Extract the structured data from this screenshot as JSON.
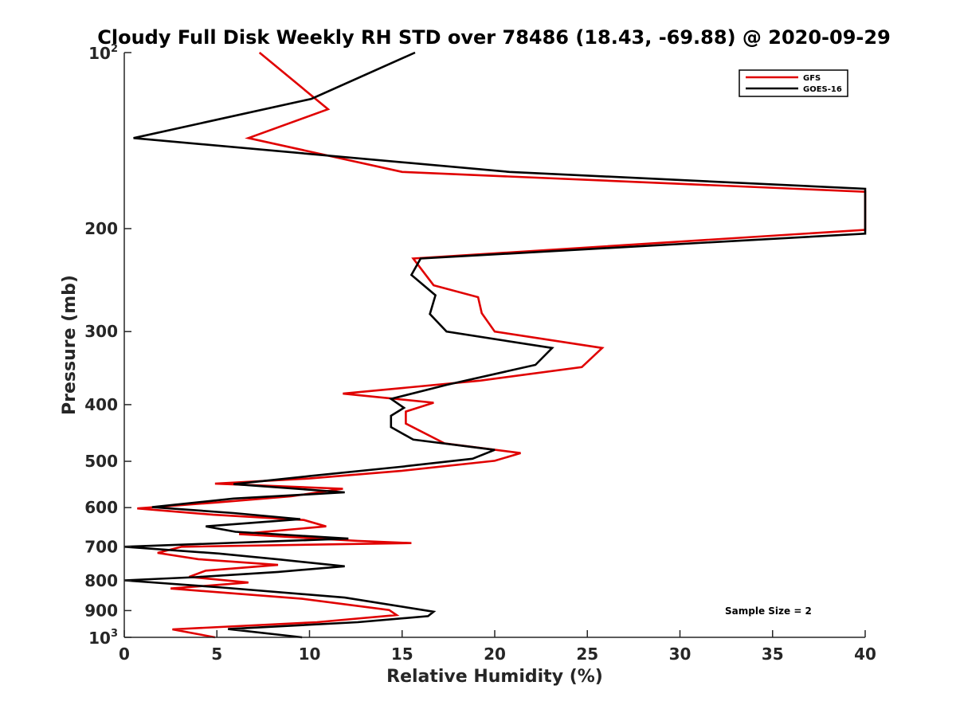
{
  "chart_data": {
    "type": "line",
    "title": "Cloudy Full Disk Weekly RH STD over 78486 (18.43, -69.88) @ 2020-09-29",
    "xlabel": "Relative Humidity (%)",
    "ylabel": "Pressure (mb)",
    "xlim": [
      0,
      40
    ],
    "ylim": [
      100,
      1000
    ],
    "y_scale": "log",
    "y_reversed": true,
    "xticks": [
      0,
      5,
      10,
      15,
      20,
      25,
      30,
      35,
      40
    ],
    "yticks": [
      {
        "value": 100,
        "label": "10",
        "exp": "2"
      },
      {
        "value": 200,
        "label": "200"
      },
      {
        "value": 300,
        "label": "300"
      },
      {
        "value": 400,
        "label": "400"
      },
      {
        "value": 500,
        "label": "500"
      },
      {
        "value": 600,
        "label": "600"
      },
      {
        "value": 700,
        "label": "700"
      },
      {
        "value": 800,
        "label": "800"
      },
      {
        "value": 900,
        "label": "900"
      },
      {
        "value": 1000,
        "label": "10",
        "exp": "3"
      }
    ],
    "grid": false,
    "legend_position": "top-right",
    "annotation": "Sample Size = 2",
    "series": [
      {
        "name": "GFS",
        "color": "#e00000",
        "points": [
          [
            7.3,
            100
          ],
          [
            11.0,
            125
          ],
          [
            6.7,
            140
          ],
          [
            15.0,
            160
          ],
          [
            40.0,
            173
          ],
          [
            40.0,
            201
          ],
          [
            15.6,
            225
          ],
          [
            16.7,
            250
          ],
          [
            19.1,
            262
          ],
          [
            19.3,
            279
          ],
          [
            20.0,
            300
          ],
          [
            25.8,
            320
          ],
          [
            24.7,
            345
          ],
          [
            19.2,
            364
          ],
          [
            11.8,
            383
          ],
          [
            16.7,
            397
          ],
          [
            15.2,
            411
          ],
          [
            15.2,
            431
          ],
          [
            17.3,
            466
          ],
          [
            21.4,
            484
          ],
          [
            20.0,
            499
          ],
          [
            15.0,
            519
          ],
          [
            10.0,
            535
          ],
          [
            4.9,
            546
          ],
          [
            11.8,
            557
          ],
          [
            9.0,
            574
          ],
          [
            5.0,
            588
          ],
          [
            0.7,
            602
          ],
          [
            4.8,
            617
          ],
          [
            9.7,
            630
          ],
          [
            10.9,
            646
          ],
          [
            6.2,
            666
          ],
          [
            12.6,
            684
          ],
          [
            15.5,
            690
          ],
          [
            3.1,
            700
          ],
          [
            1.8,
            717
          ],
          [
            4.0,
            735
          ],
          [
            8.3,
            752
          ],
          [
            4.4,
            769
          ],
          [
            3.5,
            788
          ],
          [
            6.7,
            806
          ],
          [
            2.5,
            825
          ],
          [
            9.6,
            859
          ],
          [
            14.3,
            898
          ],
          [
            14.7,
            916
          ],
          [
            10.4,
            942
          ],
          [
            2.6,
            969
          ],
          [
            4.9,
            1000
          ]
        ]
      },
      {
        "name": "GOES-16",
        "color": "#000000",
        "points": [
          [
            15.7,
            100
          ],
          [
            10.1,
            120
          ],
          [
            0.5,
            140
          ],
          [
            20.8,
            160
          ],
          [
            40.0,
            171
          ],
          [
            40.0,
            204
          ],
          [
            16.0,
            225
          ],
          [
            15.5,
            240
          ],
          [
            16.8,
            260
          ],
          [
            16.5,
            280
          ],
          [
            17.4,
            300
          ],
          [
            23.1,
            320
          ],
          [
            22.2,
            342
          ],
          [
            17.4,
            370
          ],
          [
            14.4,
            391
          ],
          [
            15.1,
            405
          ],
          [
            14.4,
            418
          ],
          [
            14.4,
            437
          ],
          [
            15.6,
            459
          ],
          [
            20.0,
            478
          ],
          [
            18.8,
            495
          ],
          [
            14.9,
            511
          ],
          [
            10.0,
            530
          ],
          [
            5.9,
            547
          ],
          [
            11.9,
            565
          ],
          [
            5.9,
            579
          ],
          [
            1.5,
            599
          ],
          [
            5.9,
            613
          ],
          [
            9.5,
            628
          ],
          [
            4.4,
            646
          ],
          [
            6.0,
            660
          ],
          [
            12.1,
            678
          ],
          [
            0.0,
            700
          ],
          [
            5.1,
            719
          ],
          [
            8.4,
            736
          ],
          [
            11.9,
            756
          ],
          [
            8.3,
            773
          ],
          [
            3.8,
            789
          ],
          [
            0.0,
            799
          ],
          [
            5.3,
            822
          ],
          [
            11.9,
            855
          ],
          [
            16.7,
            904
          ],
          [
            16.4,
            920
          ],
          [
            12.6,
            942
          ],
          [
            5.6,
            968
          ],
          [
            9.6,
            1000
          ]
        ]
      }
    ]
  }
}
